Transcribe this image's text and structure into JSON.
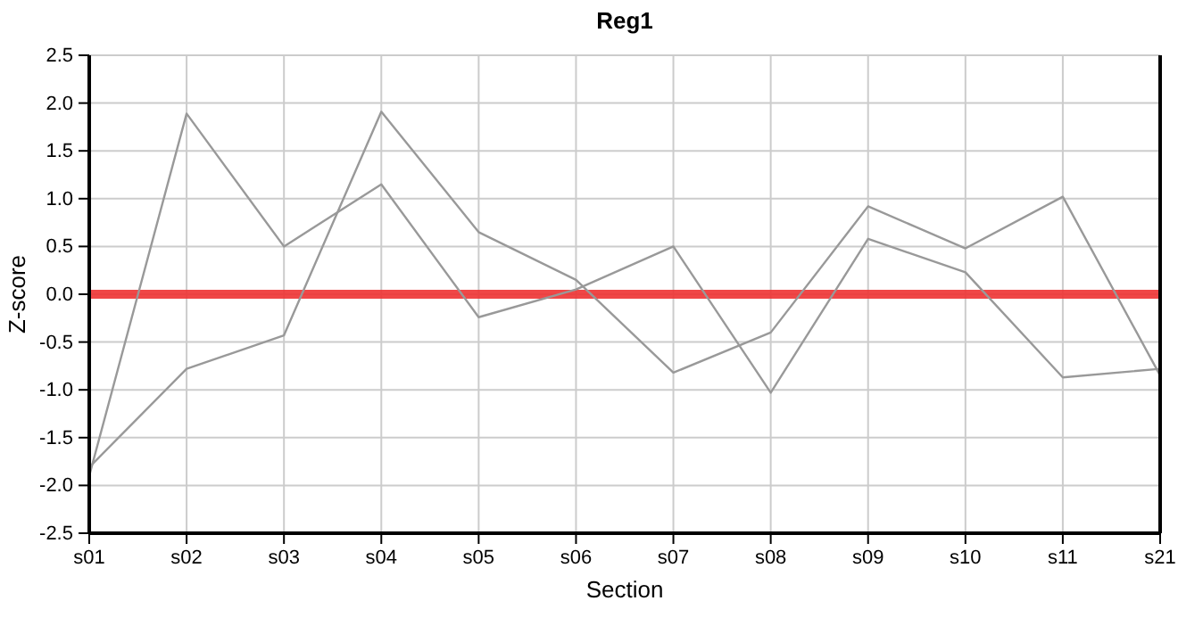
{
  "chart_data": {
    "type": "line",
    "title": "Reg1",
    "xlabel": "Section",
    "ylabel": "Z-score",
    "categories": [
      "s01",
      "s02",
      "s03",
      "s04",
      "s05",
      "s06",
      "s07",
      "s08",
      "s09",
      "s10",
      "s11",
      "s21"
    ],
    "series": [
      {
        "color": "#999999",
        "values": [
          -1.9,
          1.89,
          0.5,
          1.15,
          -0.24,
          0.05,
          0.5,
          -1.03,
          0.58,
          0.23,
          -0.87,
          -0.78
        ]
      },
      {
        "color": "#999999",
        "values": [
          -1.81,
          -0.78,
          -0.43,
          1.91,
          0.65,
          0.15,
          -0.82,
          -0.4,
          0.92,
          0.48,
          1.02,
          -0.85
        ]
      }
    ],
    "ylim": [
      -2.5,
      2.5
    ],
    "yticks": [
      {
        "value": -2.5,
        "label": "-2.5"
      },
      {
        "value": -2,
        "label": "-2.0"
      },
      {
        "value": -1.5,
        "label": "-1.5"
      },
      {
        "value": -1,
        "label": "-1.0"
      },
      {
        "value": -0.5,
        "label": "-0.5"
      },
      {
        "value": 0,
        "label": "0.0"
      },
      {
        "value": 0.5,
        "label": "0.5"
      },
      {
        "value": 1,
        "label": "1.0"
      },
      {
        "value": 1.5,
        "label": "1.5"
      },
      {
        "value": 2,
        "label": "2.0"
      },
      {
        "value": 2.5,
        "label": "2.5"
      }
    ],
    "grid": true,
    "marker": "none",
    "line_style": "solid",
    "ref_lines": [
      {
        "axis": "y",
        "value": 0,
        "color": "#ee3333"
      }
    ]
  }
}
